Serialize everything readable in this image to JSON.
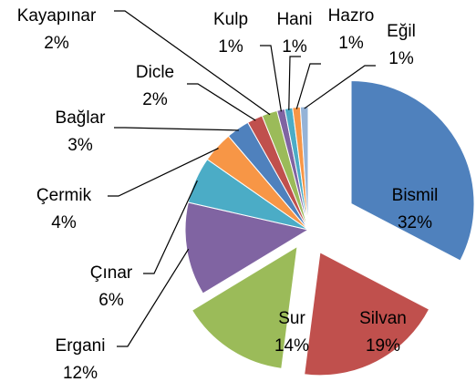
{
  "chart_data": {
    "type": "pie",
    "categories": [
      "Bismil",
      "Silvan",
      "Sur",
      "Ergani",
      "Çınar",
      "Çermik",
      "Bağlar",
      "Dicle",
      "Kayapınar",
      "Kulp",
      "Hani",
      "Hazro",
      "Eğil"
    ],
    "values": [
      32,
      19,
      14,
      12,
      6,
      4,
      3,
      2,
      2,
      1,
      1,
      1,
      1
    ],
    "value_labels": [
      "32%",
      "19%",
      "14%",
      "12%",
      "6%",
      "4%",
      "3%",
      "2%",
      "2%",
      "1%",
      "1%",
      "1%",
      "1%"
    ],
    "colors": [
      "#4f81bd",
      "#c0504d",
      "#9bbb59",
      "#8064a2",
      "#4bacc6",
      "#f79646",
      "#4f81bd",
      "#c0504d",
      "#9bbb59",
      "#8064a2",
      "#4bacc6",
      "#f79646",
      "#95b3d7"
    ]
  }
}
